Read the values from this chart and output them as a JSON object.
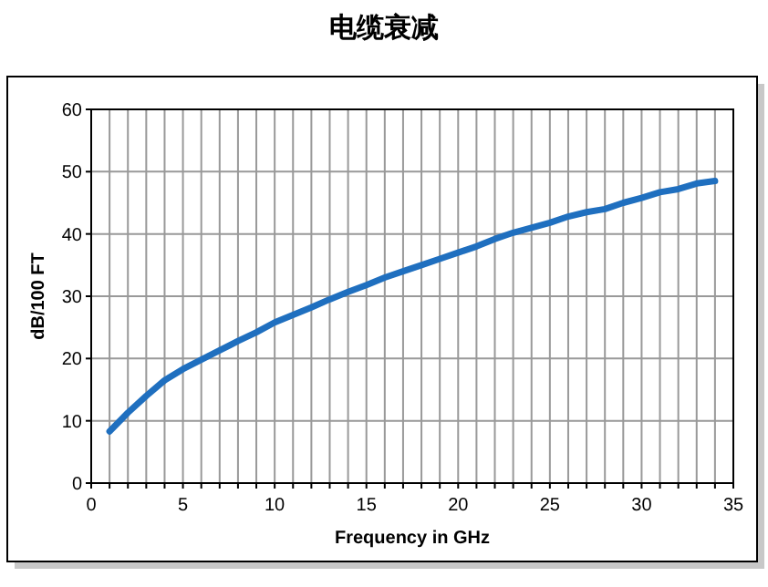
{
  "chart_data": {
    "type": "line",
    "title": "电缆衰减",
    "xlabel": "Frequency in GHz",
    "ylabel": "dB/100 FT",
    "x": [
      1,
      2,
      3,
      4,
      5,
      6,
      7,
      8,
      9,
      10,
      11,
      12,
      13,
      14,
      15,
      16,
      17,
      18,
      19,
      20,
      21,
      22,
      23,
      24,
      25,
      26,
      27,
      28,
      29,
      30,
      31,
      32,
      33,
      34
    ],
    "series": [
      {
        "color": "#1f6fbf",
        "values": [
          8.3,
          11.3,
          14,
          16.5,
          18.3,
          19.8,
          21.3,
          22.8,
          24.2,
          25.8,
          27,
          28.2,
          29.5,
          30.7,
          31.8,
          33,
          34,
          35,
          36,
          37,
          38,
          39.2,
          40.2,
          41,
          41.8,
          42.8,
          43.5,
          44,
          45,
          45.8,
          46.7,
          47.2,
          48.1,
          48.5
        ]
      }
    ],
    "xlim": [
      0,
      35
    ],
    "ylim": [
      0,
      60
    ],
    "xticks": [
      0,
      {
        "value": 1,
        "label": null
      },
      {
        "value": 2,
        "label": null
      },
      {
        "value": 3,
        "label": null
      },
      {
        "value": 4,
        "label": null
      },
      5,
      {
        "value": 6,
        "label": null
      },
      {
        "value": 7,
        "label": null
      },
      {
        "value": 8,
        "label": null
      },
      {
        "value": 9,
        "label": null
      },
      10,
      {
        "value": 11,
        "label": null
      },
      {
        "value": 12,
        "label": null
      },
      {
        "value": 13,
        "label": null
      },
      {
        "value": 14,
        "label": null
      },
      15,
      {
        "value": 16,
        "label": null
      },
      {
        "value": 17,
        "label": null
      },
      {
        "value": 18,
        "label": null
      },
      {
        "value": 19,
        "label": null
      },
      20,
      {
        "value": 21,
        "label": null
      },
      {
        "value": 22,
        "label": null
      },
      {
        "value": 23,
        "label": null
      },
      {
        "value": 24,
        "label": null
      },
      25,
      {
        "value": 26,
        "label": null
      },
      {
        "value": 27,
        "label": null
      },
      {
        "value": 28,
        "label": null
      },
      {
        "value": 29,
        "label": null
      },
      30,
      {
        "value": 31,
        "label": null
      },
      {
        "value": 32,
        "label": null
      },
      {
        "value": 33,
        "label": null
      },
      {
        "value": 34,
        "label": null
      },
      35
    ],
    "yticks": [
      0,
      10,
      20,
      30,
      40,
      50,
      60
    ],
    "grid": true,
    "marker": "none",
    "line_style": "solid"
  }
}
